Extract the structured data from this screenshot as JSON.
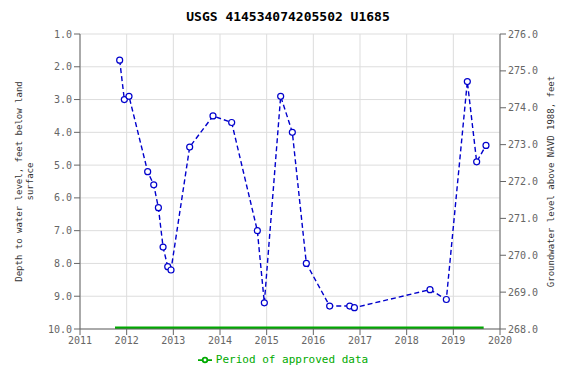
{
  "chart_data": {
    "type": "line",
    "title": "USGS 414534074205502 U1685",
    "ylabel": "Depth to water level, feet below land\nsurface",
    "y2label": "Groundwater level above NAVD 1988, feet",
    "xlim": [
      2011,
      2020
    ],
    "xticks": [
      2011,
      2012,
      2013,
      2014,
      2015,
      2016,
      2017,
      2018,
      2019,
      2020
    ],
    "ylim": [
      10.0,
      1.0
    ],
    "yticks": [
      {
        "value": 1.0,
        "label": "1.0"
      },
      {
        "value": 2.0,
        "label": "2.0"
      },
      {
        "value": 3.0,
        "label": "3.0"
      },
      {
        "value": 4.0,
        "label": "4.0"
      },
      {
        "value": 5.0,
        "label": "5.0"
      },
      {
        "value": 6.0,
        "label": "6.0"
      },
      {
        "value": 7.0,
        "label": "7.0"
      },
      {
        "value": 8.0,
        "label": "8.0"
      },
      {
        "value": 9.0,
        "label": "9.0"
      },
      {
        "value": 10.0,
        "label": "10.0"
      }
    ],
    "y2lim": [
      268.0,
      276.0
    ],
    "y2ticks": [
      {
        "value": 276.0,
        "label": "276.0"
      },
      {
        "value": 275.0,
        "label": "275.0"
      },
      {
        "value": 274.0,
        "label": "274.0"
      },
      {
        "value": 273.0,
        "label": "273.0"
      },
      {
        "value": 272.0,
        "label": "272.0"
      },
      {
        "value": 271.0,
        "label": "271.0"
      },
      {
        "value": 270.0,
        "label": "270.0"
      },
      {
        "value": 269.0,
        "label": "269.0"
      },
      {
        "value": 268.0,
        "label": "268.0"
      }
    ],
    "grid": true,
    "legend": "bottom",
    "series": [
      {
        "color": "#0000cc",
        "line_style": "dashed",
        "marker": "circle",
        "x": [
          2011.85,
          2011.95,
          2012.05,
          2012.45,
          2012.58,
          2012.68,
          2012.78,
          2012.88,
          2012.95,
          2013.35,
          2013.85,
          2014.25,
          2014.8,
          2014.95,
          2015.3,
          2015.55,
          2015.85,
          2016.35,
          2016.78,
          2016.88,
          2018.5,
          2018.85,
          2019.3,
          2019.5,
          2019.7
        ],
        "values": [
          1.8,
          3.0,
          2.9,
          5.2,
          5.6,
          6.3,
          7.5,
          8.1,
          8.2,
          4.45,
          3.5,
          3.7,
          7.0,
          9.2,
          2.9,
          4.0,
          8.0,
          9.3,
          9.3,
          9.35,
          8.8,
          9.1,
          2.45,
          4.9,
          4.4
        ]
      },
      {
        "name": "Period of approved data",
        "color": "#00aa00",
        "line_style": "solid",
        "marker": "none",
        "x": [
          2011.75,
          2019.65
        ],
        "values": [
          10.0,
          10.0
        ]
      }
    ]
  }
}
